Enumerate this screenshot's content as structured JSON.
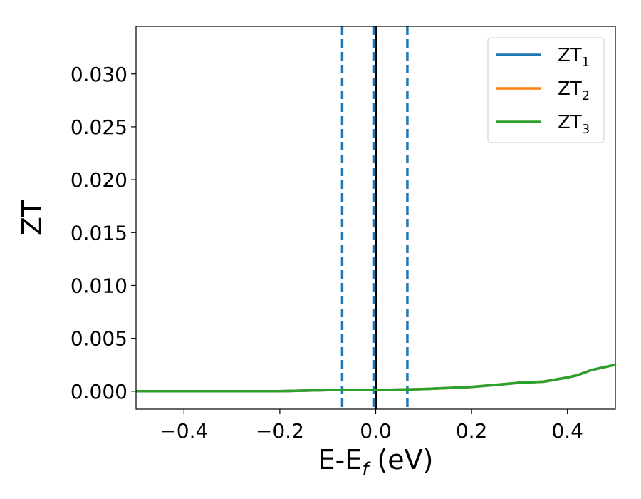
{
  "chart_data": {
    "type": "line",
    "xlabel": "E-E",
    "xlabel_sub": "f",
    "xlabel_suffix": " (eV)",
    "ylabel": "ZT",
    "xlim": [
      -0.5,
      0.5
    ],
    "ylim": [
      -0.0017,
      0.0345
    ],
    "xticks": [
      -0.4,
      -0.2,
      0.0,
      0.2,
      0.4
    ],
    "xtick_labels": [
      "−0.4",
      "−0.2",
      "0.0",
      "0.2",
      "0.4"
    ],
    "yticks": [
      0.0,
      0.005,
      0.01,
      0.015,
      0.02,
      0.025,
      0.03
    ],
    "ytick_labels": [
      "0.000",
      "0.005",
      "0.010",
      "0.015",
      "0.020",
      "0.025",
      "0.030"
    ],
    "legend_position": "top-right",
    "grid": false,
    "series": [
      {
        "name": "ZT",
        "name_sub": "1",
        "color": "#1f77b4",
        "x": [
          -0.5,
          -0.4,
          -0.3,
          -0.2,
          -0.1,
          0.0,
          0.1,
          0.2,
          0.25,
          0.3,
          0.35,
          0.4,
          0.42,
          0.45,
          0.47,
          0.5
        ],
        "y": [
          0.0,
          0.0,
          0.0,
          0.0,
          0.0001,
          0.0001,
          0.0002,
          0.0004,
          0.0006,
          0.0008,
          0.0009,
          0.0013,
          0.0015,
          0.002,
          0.0022,
          0.0025
        ]
      },
      {
        "name": "ZT",
        "name_sub": "2",
        "color": "#ff7f0e",
        "x": [
          -0.5,
          -0.4,
          -0.3,
          -0.2,
          -0.1,
          0.0,
          0.1,
          0.2,
          0.25,
          0.3,
          0.35,
          0.4,
          0.42,
          0.45,
          0.47,
          0.5
        ],
        "y": [
          0.0,
          0.0,
          0.0,
          0.0,
          0.0001,
          0.0001,
          0.0002,
          0.0004,
          0.0006,
          0.0008,
          0.0009,
          0.0013,
          0.0015,
          0.002,
          0.0022,
          0.0025
        ]
      },
      {
        "name": "ZT",
        "name_sub": "3",
        "color": "#2ca02c",
        "x": [
          -0.5,
          -0.4,
          -0.3,
          -0.2,
          -0.1,
          0.0,
          0.1,
          0.2,
          0.25,
          0.3,
          0.35,
          0.4,
          0.42,
          0.45,
          0.47,
          0.5
        ],
        "y": [
          0.0,
          0.0,
          0.0,
          0.0,
          0.0001,
          0.0001,
          0.0002,
          0.0004,
          0.0006,
          0.0008,
          0.0009,
          0.0013,
          0.0015,
          0.002,
          0.0022,
          0.0025
        ]
      }
    ],
    "vlines": [
      {
        "x": -0.07,
        "style": "dashed",
        "color": "#1f77b4"
      },
      {
        "x": 0.0,
        "style": "solid",
        "color": "#000000"
      },
      {
        "x": -0.003,
        "style": "dashed",
        "color": "#1f77b4"
      },
      {
        "x": 0.066,
        "style": "dashed",
        "color": "#1f77b4"
      }
    ]
  }
}
